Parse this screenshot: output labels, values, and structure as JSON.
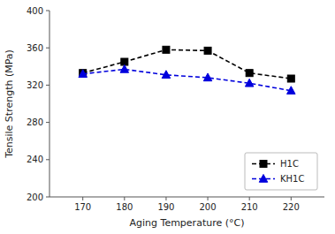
{
  "chart_data": {
    "type": "line",
    "x": [
      170,
      180,
      190,
      200,
      210,
      220
    ],
    "series": [
      {
        "name": "H1C",
        "color": "#000000",
        "marker": "square",
        "line_style": "dashed",
        "values": [
          333,
          345,
          358,
          357,
          333,
          327
        ]
      },
      {
        "name": "KH1C",
        "color": "#0000dd",
        "marker": "triangle",
        "line_style": "dashed",
        "values": [
          332,
          337,
          331,
          328,
          322,
          314
        ]
      }
    ],
    "xlabel": "Aging Temperature (°C)",
    "ylabel": "Tensile Strength (MPa)",
    "xlim": [
      162,
      228
    ],
    "ylim": [
      200,
      400
    ],
    "xticks": [
      170,
      180,
      190,
      200,
      210,
      220
    ],
    "yticks": [
      200,
      240,
      280,
      320,
      360,
      400
    ],
    "legend": "lower right",
    "grid": false
  }
}
